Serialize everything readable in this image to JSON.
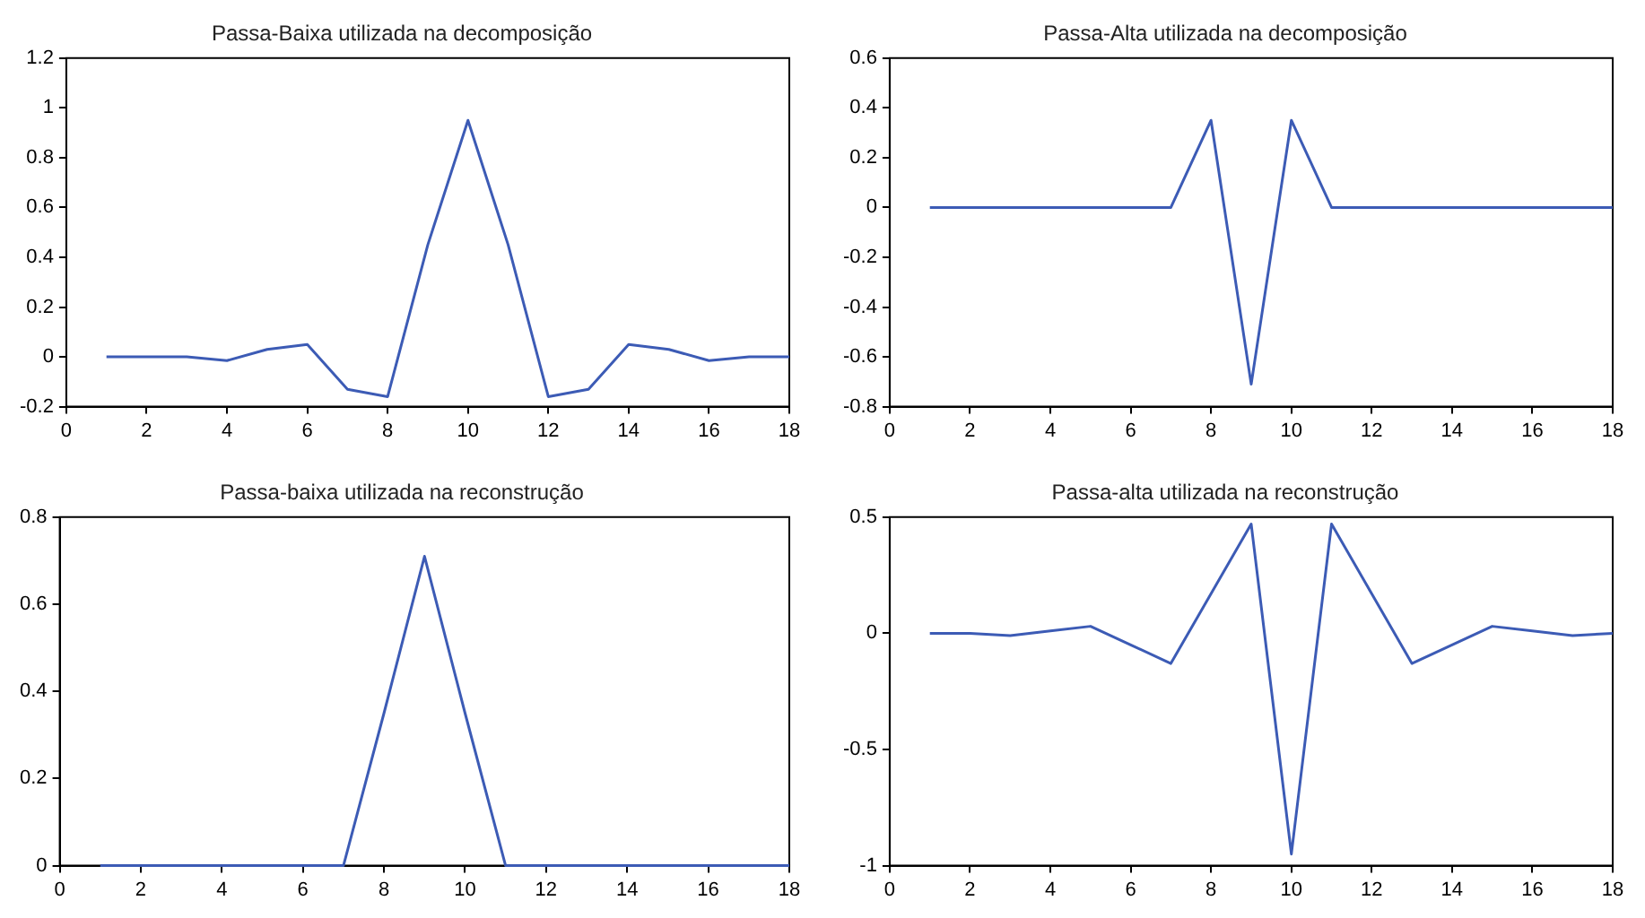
{
  "chart_data": [
    {
      "type": "line",
      "title": "Passa-Baixa utilizada na decomposição",
      "x": [
        1,
        2,
        3,
        4,
        5,
        6,
        7,
        8,
        9,
        10,
        11,
        12,
        13,
        14,
        15,
        16,
        17,
        18
      ],
      "values": [
        0,
        0,
        0,
        -0.015,
        0.03,
        0.05,
        -0.13,
        -0.16,
        0.45,
        0.95,
        0.45,
        -0.16,
        -0.13,
        0.05,
        0.03,
        -0.015,
        0,
        0
      ],
      "color": "#3c5bb5",
      "xlim": [
        0,
        18
      ],
      "xticks": [
        0,
        2,
        4,
        6,
        8,
        10,
        12,
        14,
        16,
        18
      ],
      "ylim": [
        -0.2,
        1.2
      ],
      "yticks": [
        -0.2,
        0,
        0.2,
        0.4,
        0.6,
        0.8,
        1,
        1.2
      ],
      "grid": false,
      "legend": false,
      "marker": "none"
    },
    {
      "type": "line",
      "title": "Passa-Alta utilizada na decomposição",
      "x": [
        1,
        2,
        3,
        4,
        5,
        6,
        7,
        8,
        9,
        10,
        11,
        12,
        13,
        14,
        15,
        16,
        17,
        18
      ],
      "values": [
        0,
        0,
        0,
        0,
        0,
        0,
        0,
        0.35,
        -0.71,
        0.35,
        0,
        0,
        0,
        0,
        0,
        0,
        0,
        0
      ],
      "color": "#3c5bb5",
      "xlim": [
        0,
        18
      ],
      "xticks": [
        0,
        2,
        4,
        6,
        8,
        10,
        12,
        14,
        16,
        18
      ],
      "ylim": [
        -0.8,
        0.6
      ],
      "yticks": [
        -0.8,
        -0.6,
        -0.4,
        -0.2,
        0,
        0.2,
        0.4,
        0.6
      ],
      "grid": false,
      "legend": false,
      "marker": "none"
    },
    {
      "type": "line",
      "title": "Passa-baixa utilizada na reconstrução",
      "x": [
        1,
        2,
        3,
        4,
        5,
        6,
        7,
        8,
        9,
        10,
        11,
        12,
        13,
        14,
        15,
        16,
        17,
        18
      ],
      "values": [
        0,
        0,
        0,
        0,
        0,
        0,
        0,
        0.35,
        0.71,
        0.35,
        0,
        0,
        0,
        0,
        0,
        0,
        0,
        0
      ],
      "color": "#3c5bb5",
      "xlim": [
        0,
        18
      ],
      "xticks": [
        0,
        2,
        4,
        6,
        8,
        10,
        12,
        14,
        16,
        18
      ],
      "ylim": [
        0,
        0.8
      ],
      "yticks": [
        0,
        0.2,
        0.4,
        0.6,
        0.8
      ],
      "grid": false,
      "legend": false,
      "marker": "none"
    },
    {
      "type": "line",
      "title": "Passa-alta utilizada na reconstrução",
      "x": [
        1,
        2,
        3,
        4,
        5,
        6,
        7,
        8,
        9,
        10,
        11,
        12,
        13,
        14,
        15,
        16,
        17,
        18
      ],
      "values": [
        0,
        0,
        -0.01,
        0.01,
        0.03,
        -0.05,
        -0.13,
        0.17,
        0.47,
        -0.95,
        0.47,
        0.17,
        -0.13,
        -0.05,
        0.03,
        0.01,
        -0.01,
        0
      ],
      "color": "#3c5bb5",
      "xlim": [
        0,
        18
      ],
      "xticks": [
        0,
        2,
        4,
        6,
        8,
        10,
        12,
        14,
        16,
        18
      ],
      "ylim": [
        -1,
        0.5
      ],
      "yticks": [
        -1,
        -0.5,
        0,
        0.5
      ],
      "grid": false,
      "legend": false,
      "marker": "none"
    }
  ]
}
